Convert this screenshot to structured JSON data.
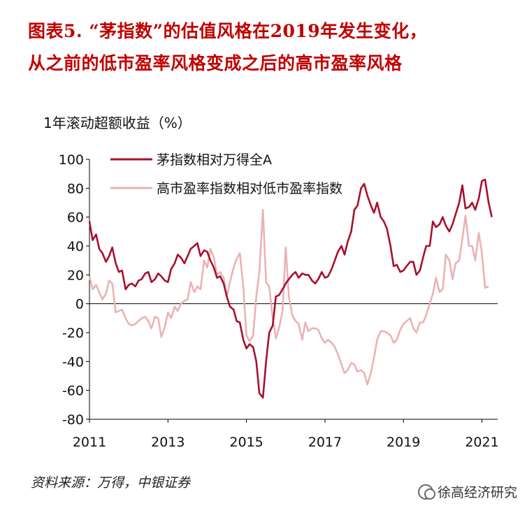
{
  "title": {
    "line1": "图表5. “茅指数”的估值风格在2019年发生变化，",
    "line2": "从之前的低市盈率风格变成之后的高市盈率风格"
  },
  "source": "资料来源：万得，中银证券",
  "watermark": "徐高经济研究",
  "colors": {
    "series1": "#A8102E",
    "series2": "#EAB3B3",
    "title": "#C00000"
  },
  "chart_data": {
    "type": "line",
    "ylabel": "1年滚动超额收益（%）",
    "ylim": [
      -80,
      100
    ],
    "yticks": [
      "100",
      "80",
      "60",
      "40",
      "20",
      "0",
      "-20",
      "-40",
      "-60",
      "-80"
    ],
    "xlim": [
      2011.0,
      2021.4
    ],
    "xticks": [
      {
        "label": "2011",
        "x": 2011
      },
      {
        "label": "2013",
        "x": 2013
      },
      {
        "label": "2015",
        "x": 2015
      },
      {
        "label": "2017",
        "x": 2017
      },
      {
        "label": "2019",
        "x": 2019
      },
      {
        "label": "2021",
        "x": 2021
      }
    ],
    "legend_position": "top",
    "series": [
      {
        "name": "茅指数相对万得全A",
        "color": "#A8102E",
        "points": [
          [
            2011.0,
            57
          ],
          [
            2011.08,
            44
          ],
          [
            2011.17,
            48
          ],
          [
            2011.25,
            38
          ],
          [
            2011.33,
            35
          ],
          [
            2011.42,
            29
          ],
          [
            2011.5,
            33
          ],
          [
            2011.58,
            39
          ],
          [
            2011.67,
            28
          ],
          [
            2011.75,
            22
          ],
          [
            2011.83,
            23
          ],
          [
            2011.92,
            10
          ],
          [
            2012.0,
            13
          ],
          [
            2012.08,
            14
          ],
          [
            2012.17,
            12
          ],
          [
            2012.25,
            16
          ],
          [
            2012.33,
            17
          ],
          [
            2012.42,
            21
          ],
          [
            2012.5,
            22
          ],
          [
            2012.58,
            15
          ],
          [
            2012.67,
            17
          ],
          [
            2012.75,
            21
          ],
          [
            2012.83,
            19
          ],
          [
            2012.92,
            16
          ],
          [
            2013.0,
            15
          ],
          [
            2013.08,
            24
          ],
          [
            2013.17,
            28
          ],
          [
            2013.25,
            34
          ],
          [
            2013.33,
            32
          ],
          [
            2013.42,
            28
          ],
          [
            2013.5,
            33
          ],
          [
            2013.58,
            38
          ],
          [
            2013.67,
            40
          ],
          [
            2013.75,
            42
          ],
          [
            2013.83,
            33
          ],
          [
            2013.92,
            37
          ],
          [
            2014.0,
            36
          ],
          [
            2014.08,
            30
          ],
          [
            2014.17,
            25
          ],
          [
            2014.25,
            18
          ],
          [
            2014.33,
            19
          ],
          [
            2014.42,
            14
          ],
          [
            2014.5,
            5
          ],
          [
            2014.58,
            -2
          ],
          [
            2014.67,
            -4
          ],
          [
            2014.75,
            -12
          ],
          [
            2014.83,
            -13
          ],
          [
            2014.92,
            -25
          ],
          [
            2015.0,
            -31
          ],
          [
            2015.08,
            -28
          ],
          [
            2015.17,
            -30
          ],
          [
            2015.25,
            -40
          ],
          [
            2015.33,
            -62
          ],
          [
            2015.42,
            -65
          ],
          [
            2015.5,
            -40
          ],
          [
            2015.58,
            -20
          ],
          [
            2015.67,
            -15
          ],
          [
            2015.75,
            5
          ],
          [
            2015.83,
            6
          ],
          [
            2015.92,
            10
          ],
          [
            2016.0,
            14
          ],
          [
            2016.08,
            17
          ],
          [
            2016.17,
            20
          ],
          [
            2016.25,
            22
          ],
          [
            2016.33,
            18
          ],
          [
            2016.42,
            21
          ],
          [
            2016.5,
            20
          ],
          [
            2016.58,
            20
          ],
          [
            2016.67,
            16
          ],
          [
            2016.75,
            14
          ],
          [
            2016.83,
            17
          ],
          [
            2016.92,
            22
          ],
          [
            2017.0,
            18
          ],
          [
            2017.08,
            19
          ],
          [
            2017.17,
            24
          ],
          [
            2017.25,
            30
          ],
          [
            2017.33,
            36
          ],
          [
            2017.42,
            40
          ],
          [
            2017.5,
            34
          ],
          [
            2017.58,
            43
          ],
          [
            2017.67,
            50
          ],
          [
            2017.75,
            65
          ],
          [
            2017.83,
            68
          ],
          [
            2017.92,
            80
          ],
          [
            2018.0,
            83
          ],
          [
            2018.08,
            75
          ],
          [
            2018.17,
            68
          ],
          [
            2018.25,
            63
          ],
          [
            2018.33,
            70
          ],
          [
            2018.42,
            60
          ],
          [
            2018.5,
            57
          ],
          [
            2018.58,
            52
          ],
          [
            2018.67,
            40
          ],
          [
            2018.75,
            26
          ],
          [
            2018.83,
            27
          ],
          [
            2018.92,
            22
          ],
          [
            2019.0,
            23
          ],
          [
            2019.08,
            26
          ],
          [
            2019.17,
            29
          ],
          [
            2019.25,
            29
          ],
          [
            2019.33,
            20
          ],
          [
            2019.42,
            23
          ],
          [
            2019.5,
            32
          ],
          [
            2019.58,
            40
          ],
          [
            2019.67,
            40
          ],
          [
            2019.75,
            57
          ],
          [
            2019.83,
            53
          ],
          [
            2019.92,
            55
          ],
          [
            2020.0,
            60
          ],
          [
            2020.08,
            54
          ],
          [
            2020.17,
            50
          ],
          [
            2020.25,
            55
          ],
          [
            2020.33,
            62
          ],
          [
            2020.42,
            70
          ],
          [
            2020.5,
            82
          ],
          [
            2020.58,
            66
          ],
          [
            2020.67,
            67
          ],
          [
            2020.75,
            70
          ],
          [
            2020.83,
            65
          ],
          [
            2020.92,
            73
          ],
          [
            2021.0,
            85
          ],
          [
            2021.08,
            86
          ],
          [
            2021.17,
            70
          ],
          [
            2021.25,
            60
          ]
        ]
      },
      {
        "name": "高市盈率指数相对低市盈率指数",
        "color": "#EAB3B3",
        "points": [
          [
            2011.0,
            19
          ],
          [
            2011.08,
            10
          ],
          [
            2011.17,
            13
          ],
          [
            2011.25,
            8
          ],
          [
            2011.33,
            3
          ],
          [
            2011.42,
            7
          ],
          [
            2011.5,
            16
          ],
          [
            2011.58,
            14
          ],
          [
            2011.67,
            -6
          ],
          [
            2011.75,
            -5
          ],
          [
            2011.83,
            -4
          ],
          [
            2011.92,
            -10
          ],
          [
            2012.0,
            -14
          ],
          [
            2012.08,
            -15
          ],
          [
            2012.17,
            -14
          ],
          [
            2012.25,
            -12
          ],
          [
            2012.33,
            -10
          ],
          [
            2012.42,
            -9
          ],
          [
            2012.5,
            -12
          ],
          [
            2012.58,
            -17
          ],
          [
            2012.67,
            -9
          ],
          [
            2012.75,
            -10
          ],
          [
            2012.83,
            -23
          ],
          [
            2012.92,
            -16
          ],
          [
            2013.0,
            -6
          ],
          [
            2013.08,
            -10
          ],
          [
            2013.17,
            -2
          ],
          [
            2013.25,
            -5
          ],
          [
            2013.33,
            0
          ],
          [
            2013.42,
            2
          ],
          [
            2013.5,
            3
          ],
          [
            2013.58,
            15
          ],
          [
            2013.67,
            8
          ],
          [
            2013.75,
            12
          ],
          [
            2013.83,
            10
          ],
          [
            2013.92,
            30
          ],
          [
            2014.0,
            25
          ],
          [
            2014.08,
            38
          ],
          [
            2014.17,
            32
          ],
          [
            2014.25,
            20
          ],
          [
            2014.33,
            22
          ],
          [
            2014.42,
            18
          ],
          [
            2014.5,
            5
          ],
          [
            2014.58,
            15
          ],
          [
            2014.67,
            25
          ],
          [
            2014.75,
            31
          ],
          [
            2014.83,
            35
          ],
          [
            2014.92,
            12
          ],
          [
            2015.0,
            -22
          ],
          [
            2015.08,
            -26
          ],
          [
            2015.17,
            -22
          ],
          [
            2015.25,
            5
          ],
          [
            2015.33,
            22
          ],
          [
            2015.42,
            65
          ],
          [
            2015.5,
            15
          ],
          [
            2015.58,
            12
          ],
          [
            2015.67,
            -10
          ],
          [
            2015.75,
            -24
          ],
          [
            2015.83,
            -17
          ],
          [
            2015.92,
            -5
          ],
          [
            2016.0,
            39
          ],
          [
            2016.08,
            5
          ],
          [
            2016.17,
            -8
          ],
          [
            2016.25,
            -12
          ],
          [
            2016.33,
            -14
          ],
          [
            2016.42,
            -25
          ],
          [
            2016.5,
            -13
          ],
          [
            2016.58,
            -19
          ],
          [
            2016.67,
            -17
          ],
          [
            2016.75,
            -17
          ],
          [
            2016.83,
            -18
          ],
          [
            2016.92,
            -24
          ],
          [
            2017.0,
            -27
          ],
          [
            2017.08,
            -25
          ],
          [
            2017.17,
            -27
          ],
          [
            2017.25,
            -30
          ],
          [
            2017.33,
            -35
          ],
          [
            2017.42,
            -42
          ],
          [
            2017.5,
            -48
          ],
          [
            2017.58,
            -46
          ],
          [
            2017.67,
            -41
          ],
          [
            2017.75,
            -42
          ],
          [
            2017.83,
            -47
          ],
          [
            2017.92,
            -46
          ],
          [
            2018.0,
            -48
          ],
          [
            2018.08,
            -56
          ],
          [
            2018.17,
            -48
          ],
          [
            2018.25,
            -37
          ],
          [
            2018.33,
            -25
          ],
          [
            2018.42,
            -19
          ],
          [
            2018.5,
            -19
          ],
          [
            2018.58,
            -20
          ],
          [
            2018.67,
            -22
          ],
          [
            2018.75,
            -27
          ],
          [
            2018.83,
            -25
          ],
          [
            2018.92,
            -18
          ],
          [
            2019.0,
            -14
          ],
          [
            2019.08,
            -12
          ],
          [
            2019.17,
            -10
          ],
          [
            2019.25,
            -17
          ],
          [
            2019.33,
            -20
          ],
          [
            2019.42,
            -13
          ],
          [
            2019.5,
            -13
          ],
          [
            2019.58,
            -8
          ],
          [
            2019.67,
            0
          ],
          [
            2019.75,
            7
          ],
          [
            2019.83,
            18
          ],
          [
            2019.92,
            8
          ],
          [
            2020.0,
            10
          ],
          [
            2020.08,
            34
          ],
          [
            2020.17,
            30
          ],
          [
            2020.25,
            17
          ],
          [
            2020.33,
            28
          ],
          [
            2020.42,
            30
          ],
          [
            2020.5,
            45
          ],
          [
            2020.58,
            61
          ],
          [
            2020.67,
            40
          ],
          [
            2020.75,
            40
          ],
          [
            2020.83,
            30
          ],
          [
            2020.92,
            49
          ],
          [
            2021.0,
            35
          ],
          [
            2021.08,
            11
          ],
          [
            2021.17,
            12
          ]
        ]
      }
    ]
  }
}
